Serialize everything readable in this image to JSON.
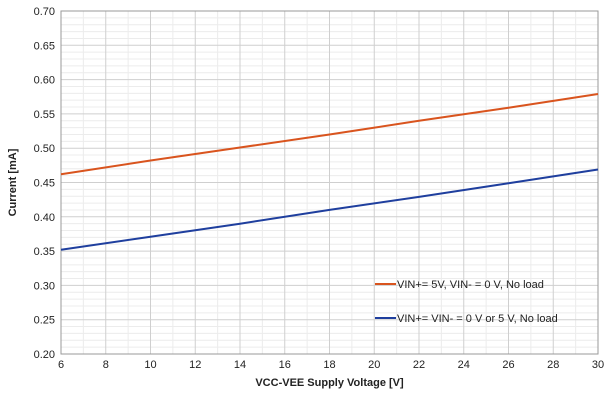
{
  "chart_data": {
    "type": "line",
    "title": "",
    "xlabel": "VCC-VEE Supply Voltage  [V]",
    "ylabel": "Current  [mA]",
    "xlim": [
      6,
      30
    ],
    "ylim": [
      0.2,
      0.7
    ],
    "x_ticks": [
      6,
      8,
      10,
      12,
      14,
      16,
      18,
      20,
      22,
      24,
      26,
      28,
      30
    ],
    "y_ticks": [
      "0.20",
      "0.25",
      "0.30",
      "0.35",
      "0.40",
      "0.45",
      "0.50",
      "0.55",
      "0.60",
      "0.65",
      "0.70"
    ],
    "grid": true,
    "legend_position": "bottom-right",
    "series": [
      {
        "name": "VIN+= 5V, VIN- = 0 V, No load",
        "color": "#d9541e",
        "x": [
          6,
          10,
          14,
          18,
          22,
          26,
          30
        ],
        "y": [
          0.462,
          0.482,
          0.501,
          0.52,
          0.54,
          0.559,
          0.579
        ]
      },
      {
        "name": "VIN+= VIN- = 0 V or 5 V, No load",
        "color": "#1f3f9e",
        "x": [
          6,
          10,
          14,
          18,
          22,
          26,
          30
        ],
        "y": [
          0.352,
          0.371,
          0.39,
          0.41,
          0.429,
          0.449,
          0.469
        ]
      }
    ]
  }
}
